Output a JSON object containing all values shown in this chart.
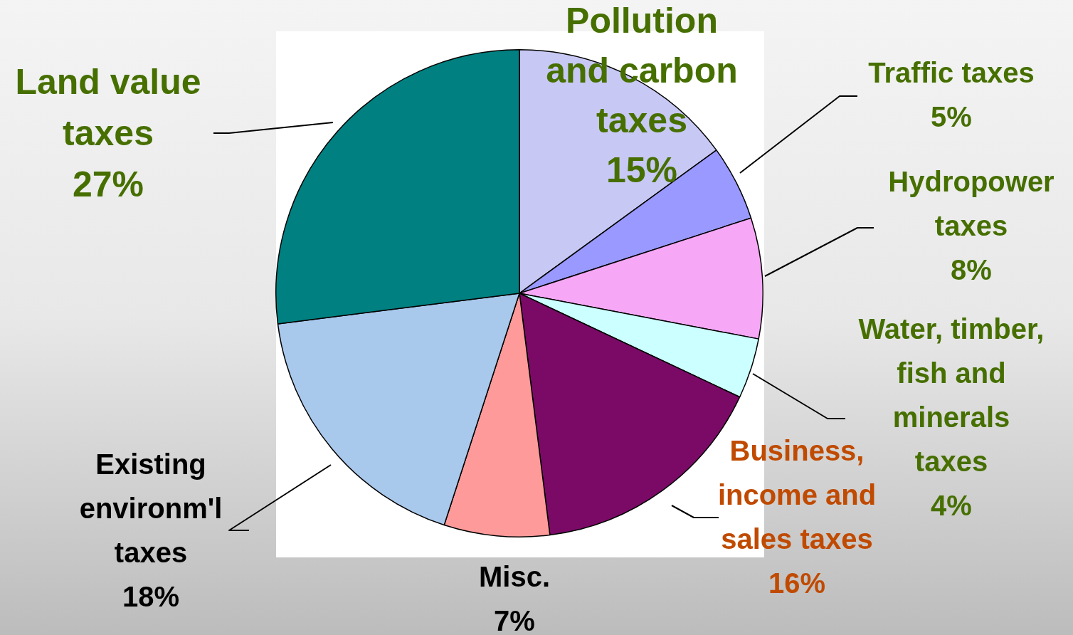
{
  "chart_data": {
    "type": "pie",
    "categories": [
      "Pollution and carbon taxes",
      "Traffic taxes",
      "Hydropower taxes",
      "Water, timber, fish and minerals taxes",
      "Business, income and sales taxes",
      "Misc.",
      "Existing environm'l taxes",
      "Land value taxes"
    ],
    "values": [
      15,
      5,
      8,
      4,
      16,
      7,
      18,
      27
    ],
    "value_labels": [
      "15%",
      "5%",
      "8%",
      "4%",
      "16%",
      "7%",
      "18%",
      "27%"
    ],
    "colors": [
      "#c8c8f4",
      "#9999ff",
      "#f6a8f6",
      "#ccffff",
      "#7a0a66",
      "#ff9a9a",
      "#a8c8ec",
      "#008080"
    ],
    "legend": false
  }
}
